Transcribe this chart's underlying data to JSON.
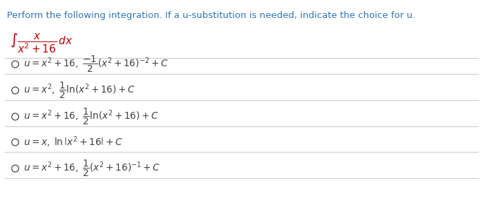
{
  "title": "Perform the following integration. If a u-substitution is needed, indicate the choice for u.",
  "title_color": "#2E74B5",
  "integral_text": "$\\int \\dfrac{x}{x^2+16}\\,dx$",
  "integral_color": "#C00000",
  "options": [
    "$u = x^2 + 16,\\; \\dfrac{-1}{2}(x^2 + 16)^{-2} + C$",
    "$u = x^2,\\; \\dfrac{1}{2}\\ln(x^2 + 16) + C$",
    "$u = x^2 + 16,\\; \\dfrac{1}{2}\\ln(x^2 + 16) + C$",
    "$u = x,\\; \\ln\\left| x^2 + 16 \\right| + C$",
    "$u = x^2 + 16,\\; \\dfrac{1}{2}(x^2 + 16)^{-1} + C$"
  ],
  "option_color": "#404040",
  "circle_color": "#404040",
  "bg_color": "#ffffff",
  "line_color": "#cccccc",
  "fig_width": 6.99,
  "fig_height": 2.94,
  "dpi": 100
}
